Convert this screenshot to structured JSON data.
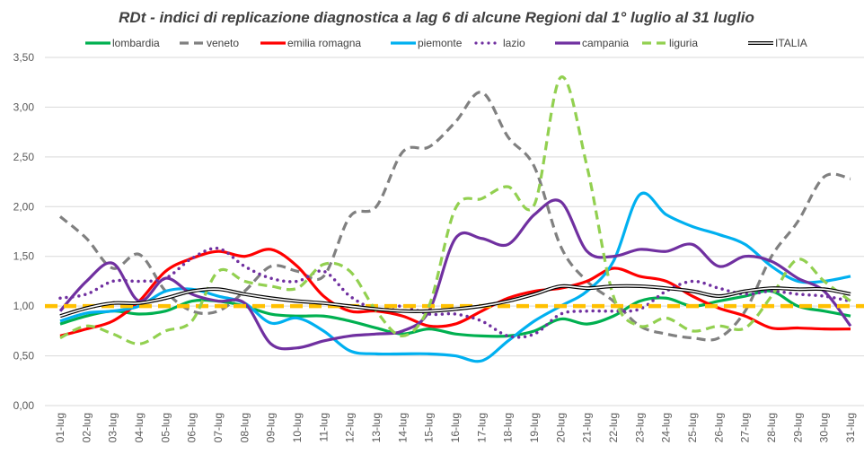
{
  "chart_data": {
    "type": "line",
    "title": "RDt - indici di replicazione diagnostica a lag 6 di alcune Regioni dal 1° luglio al 31 luglio",
    "xlabel": "",
    "ylabel": "",
    "ylim": [
      0,
      3.5
    ],
    "yticks": [
      "0,00",
      "0,50",
      "1,00",
      "1,50",
      "2,00",
      "2,50",
      "3,00",
      "3,50"
    ],
    "grid": true,
    "legend_position": "top",
    "categories": [
      "01-lug",
      "02-lug",
      "03-lug",
      "04-lug",
      "05-lug",
      "06-lug",
      "07-lug",
      "08-lug",
      "09-lug",
      "10-lug",
      "11-lug",
      "12-lug",
      "13-lug",
      "14-lug",
      "15-lug",
      "16-lug",
      "17-lug",
      "18-lug",
      "19-lug",
      "20-lug",
      "21-lug",
      "22-lug",
      "23-lug",
      "24-lug",
      "25-lug",
      "26-lug",
      "27-lug",
      "28-lug",
      "29-lug",
      "30-lug",
      "31-lug"
    ],
    "series": [
      {
        "name": "lombardia",
        "color": "#00b050",
        "style": "solid",
        "values": [
          0.82,
          0.9,
          0.95,
          0.92,
          0.95,
          1.05,
          1.05,
          1.0,
          0.92,
          0.9,
          0.9,
          0.85,
          0.78,
          0.72,
          0.77,
          0.72,
          0.7,
          0.7,
          0.75,
          0.87,
          0.82,
          0.9,
          1.05,
          1.08,
          1.0,
          1.05,
          1.1,
          1.15,
          1.0,
          0.95,
          0.9
        ]
      },
      {
        "name": "veneto",
        "color": "#808080",
        "style": "dashed",
        "values": [
          1.9,
          1.68,
          1.38,
          1.52,
          1.15,
          0.95,
          0.95,
          1.15,
          1.4,
          1.35,
          1.3,
          1.9,
          2.0,
          2.55,
          2.6,
          2.85,
          3.15,
          2.7,
          2.4,
          1.6,
          1.25,
          1.05,
          0.8,
          0.72,
          0.68,
          0.68,
          0.95,
          1.5,
          1.85,
          2.3,
          2.28
        ]
      },
      {
        "name": "emilia romagna",
        "color": "#ff0000",
        "style": "solid",
        "values": [
          0.7,
          0.77,
          0.85,
          1.05,
          1.35,
          1.48,
          1.55,
          1.5,
          1.57,
          1.4,
          1.1,
          0.95,
          0.95,
          0.9,
          0.8,
          0.82,
          0.95,
          1.08,
          1.15,
          1.18,
          1.25,
          1.38,
          1.3,
          1.25,
          1.1,
          0.98,
          0.9,
          0.78,
          0.78,
          0.77,
          0.77
        ]
      },
      {
        "name": "piemonte",
        "color": "#00b0f0",
        "style": "solid",
        "values": [
          0.85,
          0.93,
          0.95,
          1.0,
          1.15,
          1.17,
          1.1,
          1.03,
          0.83,
          0.88,
          0.75,
          0.55,
          0.52,
          0.52,
          0.52,
          0.5,
          0.45,
          0.65,
          0.85,
          1.0,
          1.15,
          1.45,
          2.12,
          1.92,
          1.8,
          1.72,
          1.62,
          1.4,
          1.25,
          1.25,
          1.3
        ]
      },
      {
        "name": "lazio",
        "color": "#7030a0",
        "style": "dotted",
        "values": [
          1.08,
          1.12,
          1.25,
          1.25,
          1.28,
          1.48,
          1.58,
          1.4,
          1.28,
          1.25,
          1.35,
          1.1,
          0.97,
          1.0,
          0.92,
          0.92,
          0.85,
          0.7,
          0.72,
          0.92,
          0.95,
          0.95,
          0.97,
          1.15,
          1.25,
          1.18,
          1.12,
          1.15,
          1.12,
          1.1,
          1.05
        ]
      },
      {
        "name": "campania",
        "color": "#7030a0",
        "style": "solid",
        "values": [
          0.95,
          1.25,
          1.43,
          1.05,
          1.28,
          1.12,
          1.05,
          1.03,
          0.62,
          0.58,
          0.65,
          0.7,
          0.72,
          0.75,
          0.95,
          1.68,
          1.68,
          1.62,
          1.92,
          2.05,
          1.55,
          1.5,
          1.57,
          1.55,
          1.62,
          1.4,
          1.5,
          1.45,
          1.28,
          1.15,
          0.8
        ]
      },
      {
        "name": "liguria",
        "color": "#92d050",
        "style": "dashed",
        "values": [
          0.68,
          0.8,
          0.72,
          0.62,
          0.75,
          0.85,
          1.35,
          1.25,
          1.2,
          1.18,
          1.42,
          1.35,
          0.95,
          0.7,
          1.0,
          1.98,
          2.08,
          2.2,
          2.02,
          3.3,
          2.4,
          1.1,
          0.8,
          0.88,
          0.75,
          0.8,
          0.78,
          1.1,
          1.47,
          1.25,
          1.05
        ]
      },
      {
        "name": "ITALIA",
        "color": "#000000",
        "style": "double",
        "values": [
          0.9,
          0.98,
          1.03,
          1.03,
          1.08,
          1.15,
          1.17,
          1.12,
          1.08,
          1.05,
          1.03,
          1.0,
          0.97,
          0.95,
          0.95,
          0.97,
          1.0,
          1.05,
          1.12,
          1.2,
          1.18,
          1.2,
          1.2,
          1.18,
          1.15,
          1.1,
          1.15,
          1.18,
          1.17,
          1.17,
          1.12
        ]
      }
    ],
    "reference_line": {
      "value": 1.0,
      "color": "#ffc000",
      "style": "dashed"
    }
  }
}
